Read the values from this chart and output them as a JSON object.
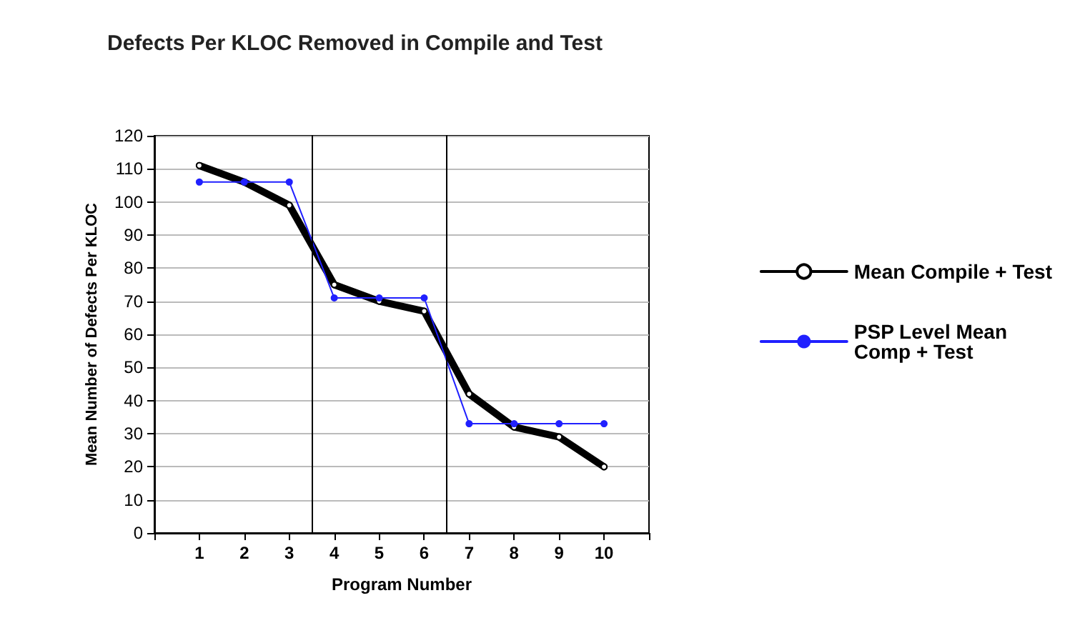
{
  "chart_data": {
    "type": "line",
    "title": "Defects Per KLOC Removed in Compile and Test",
    "xlabel": "Program Number",
    "ylabel": "Mean Number of Defects Per KLOC",
    "x": [
      1,
      2,
      3,
      4,
      5,
      6,
      7,
      8,
      9,
      10
    ],
    "series": [
      {
        "name": "Mean Compile + Test",
        "color": "#000000",
        "values": [
          111,
          106,
          99,
          75,
          70,
          67,
          42,
          32,
          29,
          20
        ]
      },
      {
        "name": "PSP Level Mean Comp + Test",
        "color": "#2020ff",
        "values": [
          106,
          106,
          106,
          71,
          71,
          71,
          33,
          33,
          33,
          33
        ]
      }
    ],
    "xlim": [
      0,
      11
    ],
    "xticks": [
      {
        "value": 0,
        "label": null
      },
      1,
      2,
      3,
      4,
      5,
      6,
      7,
      8,
      9,
      10,
      {
        "value": 11,
        "label": null
      }
    ],
    "ylim": [
      0,
      120
    ],
    "yticks": [
      0,
      10,
      20,
      30,
      40,
      50,
      60,
      70,
      80,
      90,
      100,
      110,
      120
    ],
    "ref_lines": [
      {
        "axis": "x",
        "value": 3.5,
        "color": "#000000"
      },
      {
        "axis": "x",
        "value": 6.5,
        "color": "#000000"
      }
    ],
    "grid": "y",
    "legend": "right",
    "marker": "circle",
    "line_style": "solid"
  }
}
